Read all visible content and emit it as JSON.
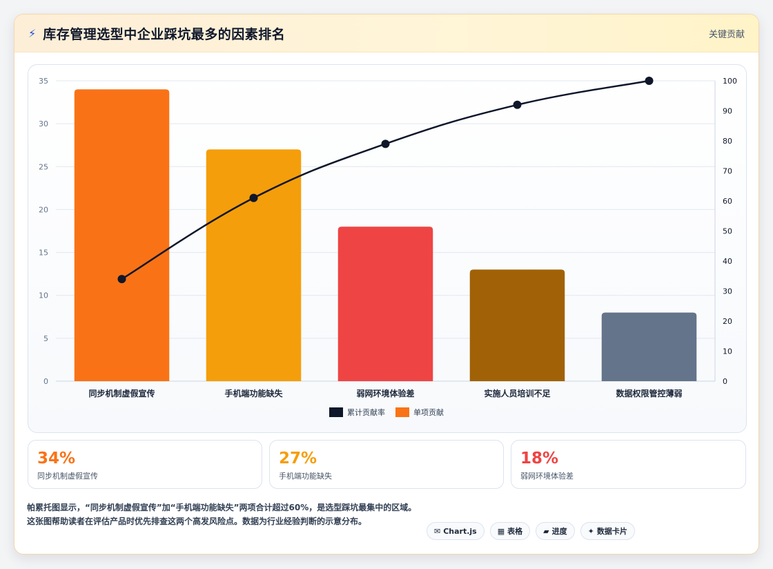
{
  "header": {
    "icon": "lightning-icon",
    "title": "库存管理选型中企业踩坑最多的因素排名",
    "tag": "关键贡献"
  },
  "chart_data": {
    "type": "bar",
    "categories": [
      "同步机制虚假宣传",
      "手机端功能缺失",
      "弱网环境体验差",
      "实施人员培训不足",
      "数据权限管控薄弱"
    ],
    "series": [
      {
        "name": "单项贡献",
        "type": "bar",
        "values": [
          34,
          27,
          18,
          13,
          8
        ],
        "colors": [
          "#f97316",
          "#f59e0b",
          "#ef4444",
          "#a16207",
          "#64748b"
        ]
      },
      {
        "name": "累计贡献率",
        "type": "line",
        "values": [
          34,
          61,
          79,
          92,
          100
        ],
        "color": "#0f172a"
      }
    ],
    "left_axis": {
      "ylim": [
        0,
        35
      ],
      "ticks": [
        0,
        5,
        10,
        15,
        20,
        25,
        30,
        35
      ]
    },
    "right_axis": {
      "ylim": [
        0,
        100
      ],
      "ticks": [
        0,
        10,
        20,
        30,
        40,
        50,
        60,
        70,
        80,
        90,
        100
      ]
    },
    "legend": [
      {
        "label": "累计贡献率",
        "color": "#0f172a"
      },
      {
        "label": "单项贡献",
        "color": "#f97316"
      }
    ],
    "legend_position": "bottom",
    "grid": true
  },
  "stats": [
    {
      "value": "34%",
      "label": "同步机制虚假宣传",
      "color": "#f97316"
    },
    {
      "value": "27%",
      "label": "手机端功能缺失",
      "color": "#f59e0b"
    },
    {
      "value": "18%",
      "label": "弱网环境体验差",
      "color": "#ef4444"
    }
  ],
  "description": "帕累托图显示，“同步机制虚假宣传”加“手机端功能缺失”两项合计超过60%，是选型踩坑最集中的区域。这张图帮助读者在评估产品时优先排查这两个高发风险点。数据为行业经验判断的示意分布。",
  "pills": [
    {
      "icon": "✉",
      "label": "Chart.js"
    },
    {
      "icon": "▦",
      "label": "表格"
    },
    {
      "icon": "▰",
      "label": "进度"
    },
    {
      "icon": "✦",
      "label": "数据卡片"
    }
  ]
}
